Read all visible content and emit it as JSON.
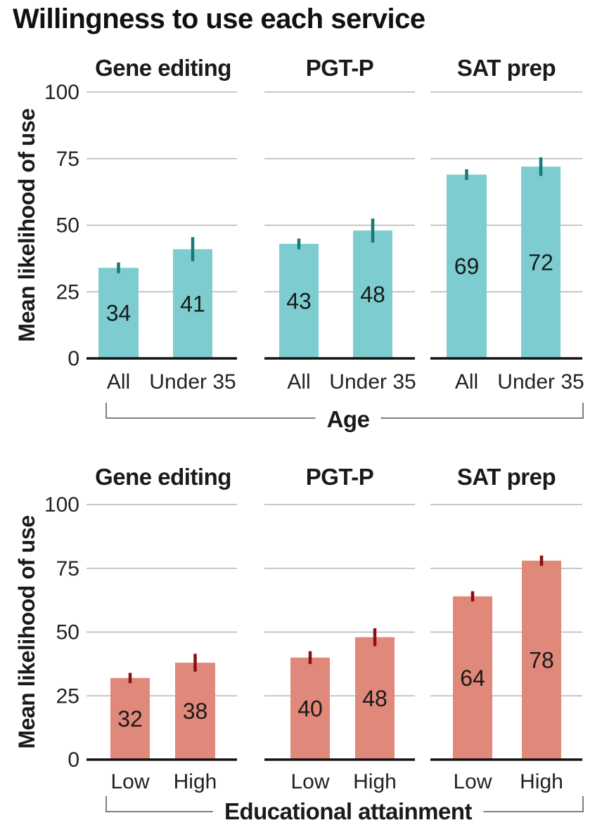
{
  "title": "Willingness to use each service",
  "colors": {
    "age_bar": "#7dcdd0",
    "age_error": "#177a78",
    "edu_bar": "#e0887a",
    "edu_error": "#8b0f12",
    "grid": "#b5b5b5",
    "axis": "#111111",
    "bracket": "#555555"
  },
  "chart_data": [
    {
      "type": "bar",
      "ylabel": "Mean likelihood of use",
      "ylim": [
        0,
        100
      ],
      "yticks": [
        0,
        25,
        50,
        75,
        100
      ],
      "grid": true,
      "group_label": "Age",
      "panels": [
        {
          "title": "Gene editing",
          "categories": [
            "All",
            "Under 35"
          ],
          "values": [
            34,
            41
          ],
          "err_low": [
            32,
            36.5
          ],
          "err_high": [
            36,
            45.5
          ]
        },
        {
          "title": "PGT-P",
          "categories": [
            "All",
            "Under 35"
          ],
          "values": [
            43,
            48
          ],
          "err_low": [
            41,
            43.5
          ],
          "err_high": [
            45,
            52.5
          ]
        },
        {
          "title": "SAT prep",
          "categories": [
            "All",
            "Under 35"
          ],
          "values": [
            69,
            72
          ],
          "err_low": [
            67,
            68.5
          ],
          "err_high": [
            71,
            75.5
          ]
        }
      ]
    },
    {
      "type": "bar",
      "ylabel": "Mean likelihood of use",
      "ylim": [
        0,
        100
      ],
      "yticks": [
        0,
        25,
        50,
        75,
        100
      ],
      "grid": true,
      "group_label": "Educational attainment",
      "panels": [
        {
          "title": "Gene editing",
          "categories": [
            "Low",
            "High"
          ],
          "values": [
            32,
            38
          ],
          "err_low": [
            30,
            34.5
          ],
          "err_high": [
            34,
            41.5
          ]
        },
        {
          "title": "PGT-P",
          "categories": [
            "Low",
            "High"
          ],
          "values": [
            40,
            48
          ],
          "err_low": [
            37.5,
            44.5
          ],
          "err_high": [
            42.5,
            51.5
          ]
        },
        {
          "title": "SAT prep",
          "categories": [
            "Low",
            "High"
          ],
          "values": [
            64,
            78
          ],
          "err_low": [
            62,
            76
          ],
          "err_high": [
            66,
            80
          ]
        }
      ]
    }
  ]
}
